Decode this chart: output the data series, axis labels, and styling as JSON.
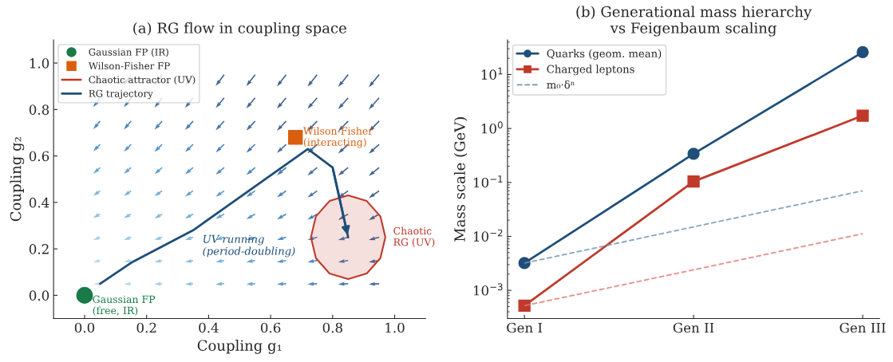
{
  "chart_data": [
    {
      "type": "line",
      "title": "(a) RG flow in coupling space",
      "xlabel": "Coupling g₁",
      "ylabel": "Coupling g₂",
      "xlim": [
        -0.1,
        1.1
      ],
      "ylim": [
        -0.1,
        1.1
      ],
      "xticks": [
        {
          "value": 0,
          "label": "0.0"
        },
        0.2,
        0.4,
        0.6,
        0.8,
        {
          "value": 1,
          "label": "1.0"
        }
      ],
      "yticks": [
        {
          "value": 0,
          "label": "0.0"
        },
        0.2,
        0.4,
        0.6,
        0.8,
        {
          "value": 1,
          "label": "1.0"
        }
      ],
      "grid": false,
      "legend": "top left",
      "series": [
        {
          "name": "Gaussian FP (IR)",
          "type": "scatter",
          "marker": "circle",
          "color": "#1a7a4a",
          "x": [
            0.0
          ],
          "values": [
            0.0
          ]
        },
        {
          "name": "Wilson-Fisher FP",
          "type": "scatter",
          "marker": "square",
          "color": "#d95f0e",
          "x": [
            0.68
          ],
          "values": [
            0.68
          ]
        },
        {
          "name": "Chaotic attractor (UV)",
          "type": "area",
          "color": "#c0392b",
          "x": [
            0.97,
            0.954,
            0.91,
            0.85,
            0.79,
            0.746,
            0.73,
            0.746,
            0.79,
            0.85,
            0.91,
            0.954,
            0.97
          ],
          "values": [
            0.25,
            0.34,
            0.406,
            0.43,
            0.406,
            0.34,
            0.25,
            0.16,
            0.094,
            0.07,
            0.094,
            0.16,
            0.25
          ]
        },
        {
          "name": "RG trajectory",
          "type": "line",
          "marker": "none",
          "color": "#1f4e79",
          "x": [
            0.05,
            0.15,
            0.35,
            0.72,
            0.8,
            0.85
          ],
          "values": [
            0.05,
            0.14,
            0.28,
            0.63,
            0.55,
            0.25
          ]
        }
      ],
      "annotations": [
        {
          "text": "Gaussian FP\n(free, IR)",
          "x": 0.0,
          "y": 0.0
        },
        {
          "text": "Wilson-Fisher\n(interacting)",
          "x": 0.68,
          "y": 0.68
        },
        {
          "text": "Chaotic\nRG (UV)",
          "x": 0.97,
          "y": 0.25
        },
        "UV running\n(period-doubling)"
      ]
    },
    {
      "type": "line",
      "title": "(b) Generational mass hierarchy\nvs Feigenbaum scaling",
      "ylabel": "Mass scale (GeV)",
      "categories": [
        "Gen I",
        "Gen II",
        "Gen III"
      ],
      "log": "y",
      "ylim": [
        0.0003,
        44
      ],
      "yticks": [
        {
          "value": 0.001,
          "label": "10$^{−3}$"
        },
        {
          "value": 0.01,
          "label": "10$^{−2}$"
        },
        {
          "value": 0.1,
          "label": "10$^{−1}$"
        },
        {
          "value": 1,
          "label": "10$^{0}$"
        },
        {
          "value": 10,
          "label": "10$^{1}$"
        }
      ],
      "grid": false,
      "legend": "top left",
      "series": [
        {
          "name": "Quarks (geom. mean)",
          "marker": "circle",
          "line_style": "solid",
          "color": "#1f4e79",
          "values": [
            0.0032,
            0.34,
            26
          ]
        },
        {
          "name": "Charged leptons",
          "marker": "square",
          "line_style": "solid",
          "color": "#c0392b",
          "values": [
            0.00052,
            0.104,
            1.73
          ]
        },
        {
          "name": "m₀·δⁿ",
          "marker": "none",
          "line_style": "dashed",
          "color": "#7393b3",
          "values": [
            0.0032,
            0.015,
            0.07
          ]
        },
        {
          "marker": "none",
          "line_style": "dashed",
          "color": "#e07b73",
          "values": [
            0.00052,
            0.0024,
            0.0112
          ]
        }
      ]
    }
  ]
}
